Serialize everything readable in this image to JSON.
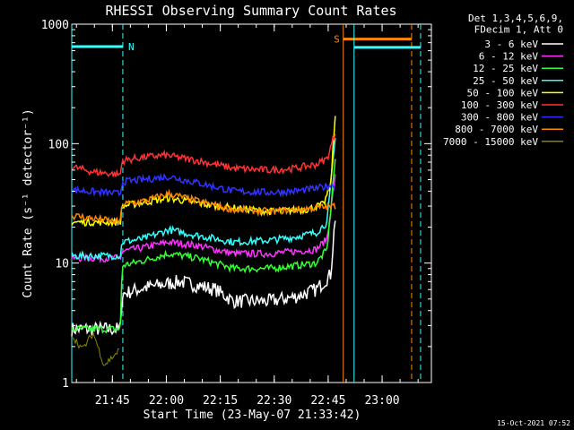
{
  "chart_data": {
    "type": "line",
    "title": "RHESSI Observing Summary Count Rates",
    "xlabel": "Start Time (23-May-07 21:33:42)",
    "ylabel": "Count Rate (s⁻¹ detector⁻¹)",
    "y_scale": "log",
    "ylim": [
      1,
      1000
    ],
    "y_ticks": [
      {
        "value": 1,
        "label": "1"
      },
      {
        "value": 10,
        "label": "10"
      },
      {
        "value": 100,
        "label": "100"
      },
      {
        "value": 1000,
        "label": "1000"
      }
    ],
    "x_unit": "minutes after 21:33:42",
    "xlim": [
      0,
      100
    ],
    "x_ticks": [
      {
        "value": 11.3,
        "label": "21:45"
      },
      {
        "value": 26.3,
        "label": "22:00"
      },
      {
        "value": 41.3,
        "label": "22:15"
      },
      {
        "value": 56.3,
        "label": "22:30"
      },
      {
        "value": 71.3,
        "label": "22:45"
      },
      {
        "value": 86.3,
        "label": "23:00"
      }
    ],
    "legend_header": [
      "Det 1,3,4,5,6,9,",
      "FDecim 1, Att 0"
    ],
    "legend_position": "right",
    "series": [
      {
        "name": "3 - 6 keV",
        "color": "#ffffff",
        "times": [
          0,
          13.5,
          14,
          20,
          30,
          40,
          45,
          55,
          62,
          68,
          72,
          73.5
        ],
        "values": [
          2.8,
          2.8,
          5.5,
          6.2,
          7.0,
          6.0,
          4.8,
          4.8,
          5.2,
          6.0,
          8.0,
          30
        ]
      },
      {
        "name": "6 - 12 keV",
        "color": "#ff33ff",
        "times": [
          0,
          13.5,
          14,
          20,
          27,
          35,
          45,
          55,
          62,
          68,
          71,
          73.5
        ],
        "values": [
          11,
          11,
          12.5,
          13.5,
          15,
          14,
          12,
          12,
          12.5,
          13,
          16,
          60
        ]
      },
      {
        "name": "12 - 25 keV",
        "color": "#33ff33",
        "times": [
          0,
          13.5,
          14,
          20,
          27,
          35,
          45,
          55,
          62,
          68,
          71,
          73.5
        ],
        "values": [
          2.8,
          2.8,
          9.5,
          10.5,
          12,
          11,
          9,
          9,
          9.5,
          10,
          13,
          90
        ]
      },
      {
        "name": "25 - 50 keV",
        "color": "#33ffff",
        "times": [
          0,
          13.5,
          14,
          20,
          27,
          35,
          45,
          55,
          62,
          68,
          71,
          73.5
        ],
        "values": [
          11.5,
          11.5,
          15,
          16,
          19,
          17,
          15,
          15.5,
          16.5,
          18,
          22,
          130
        ]
      },
      {
        "name": "50 - 100 keV",
        "color": "#ffff00",
        "times": [
          0,
          13.5,
          14,
          27,
          40,
          55,
          65,
          70,
          72,
          73.5
        ],
        "values": [
          22,
          22,
          30,
          35,
          30,
          27,
          28,
          31,
          45,
          220
        ]
      },
      {
        "name": "100 - 300 keV",
        "color": "#ff3333",
        "times": [
          0,
          6,
          13.5,
          14,
          20,
          26,
          35,
          45,
          55,
          62,
          68,
          71,
          73.5
        ],
        "values": [
          64,
          58,
          55,
          72,
          77,
          80,
          72,
          62,
          60,
          62,
          67,
          75,
          130
        ]
      },
      {
        "name": "300 - 800 keV",
        "color": "#3333ff",
        "times": [
          0,
          13.5,
          14,
          20,
          27,
          35,
          45,
          55,
          62,
          68,
          73.5
        ],
        "values": [
          41,
          38,
          48,
          50,
          53,
          47,
          40,
          39,
          40,
          42,
          46
        ]
      },
      {
        "name": "800 - 7000 keV",
        "color": "#ff8800",
        "times": [
          0,
          13.5,
          14,
          20,
          27,
          35,
          45,
          55,
          62,
          68,
          73.5
        ],
        "values": [
          25,
          22,
          31,
          33,
          38,
          33,
          28,
          27,
          28,
          29,
          30
        ]
      },
      {
        "name": "7000 - 15000 keV",
        "color": "#888800",
        "times": [
          0,
          3,
          6,
          9,
          13.5
        ],
        "values": [
          2.5,
          1.9,
          2.6,
          1.4,
          1.9
        ]
      }
    ],
    "annotations": [
      {
        "label": "N",
        "color": "#33ffff",
        "t_start": 0,
        "t_end": 14.2,
        "level": 650
      },
      {
        "label": "S",
        "color": "#ff8800",
        "t_start": 75.5,
        "t_end": 94.5,
        "level": 750
      },
      {
        "label": "",
        "color": "#33ffff",
        "t_start": 78.5,
        "t_end": 97,
        "level": 640
      }
    ],
    "timestamp": "15-Oct-2021 07:52"
  }
}
